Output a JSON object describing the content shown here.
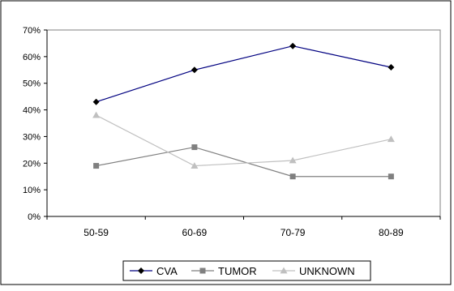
{
  "chart_data": {
    "type": "line",
    "title": "",
    "xlabel": "",
    "ylabel": "",
    "categories": [
      "50-59",
      "60-69",
      "70-79",
      "80-89"
    ],
    "ylim": [
      0,
      70
    ],
    "yticks": [
      0,
      10,
      20,
      30,
      40,
      50,
      60,
      70
    ],
    "ytick_labels": [
      "0%",
      "10%",
      "20%",
      "30%",
      "40%",
      "50%",
      "60%",
      "70%"
    ],
    "grid": false,
    "legend_position": "bottom",
    "series": [
      {
        "name": "CVA",
        "values": [
          43,
          55,
          64,
          56
        ],
        "color": "#000080",
        "marker": "diamond",
        "marker_color": "#000000"
      },
      {
        "name": "TUMOR",
        "values": [
          19,
          26,
          15,
          15
        ],
        "color": "#808080",
        "marker": "square",
        "marker_color": "#808080"
      },
      {
        "name": "UNKNOWN",
        "values": [
          38,
          19,
          21,
          29
        ],
        "color": "#c0c0c0",
        "marker": "triangle",
        "marker_color": "#c0c0c0"
      }
    ]
  }
}
